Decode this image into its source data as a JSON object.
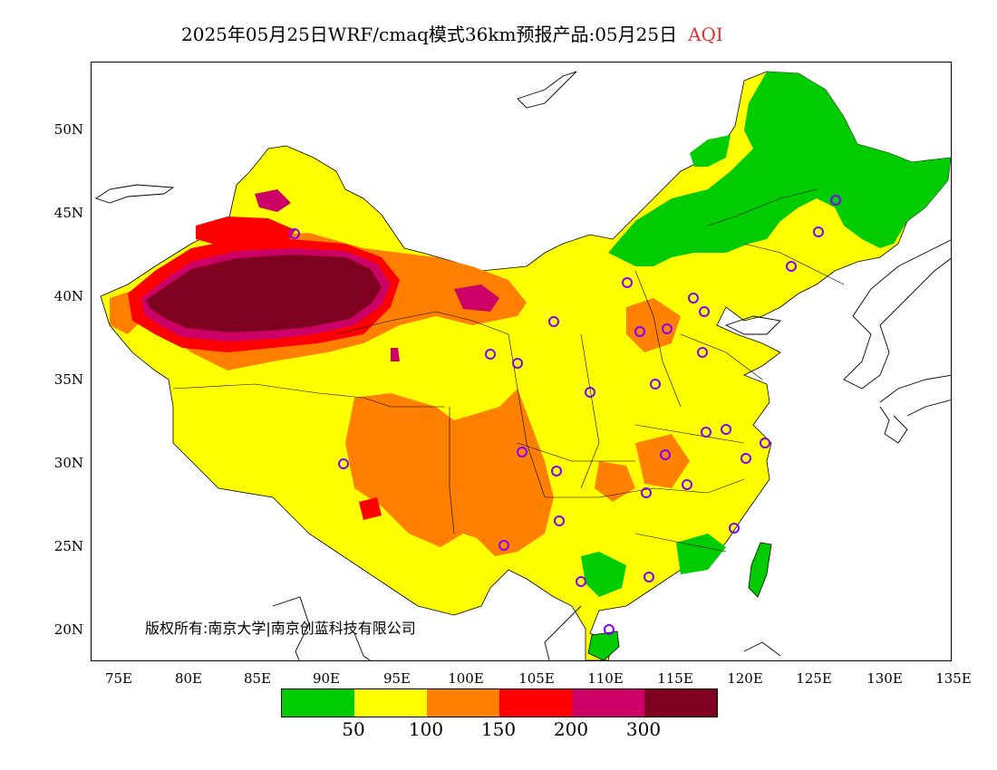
{
  "title": {
    "main": "2025年05月25日WRF/cmaq模式36km预报产品:05月25日",
    "variable": "AQI"
  },
  "y_axis_labels": [
    "50N",
    "45N",
    "40N",
    "35N",
    "30N",
    "25N",
    "20N"
  ],
  "x_axis_labels": [
    "75E",
    "80E",
    "85E",
    "90E",
    "95E",
    "100E",
    "105E",
    "110E",
    "115E",
    "120E",
    "125E",
    "130E",
    "135E"
  ],
  "copyright": "版权所有:南京大学|南京创蓝科技有限公司",
  "legend": {
    "colors": [
      "#00cc00",
      "#ffff00",
      "#ff8000",
      "#ff0000",
      "#cc0066",
      "#800020"
    ],
    "labels": [
      "50",
      "100",
      "150",
      "200",
      "300"
    ]
  },
  "colors": {
    "good": "#00cc00",
    "moderate": "#ffff00",
    "usg": "#ff8000",
    "unhealthy": "#ff0000",
    "very_unhealthy": "#cc0066",
    "hazardous": "#800020",
    "station_marker": "#8000ff",
    "title_accent": "#e03030"
  }
}
